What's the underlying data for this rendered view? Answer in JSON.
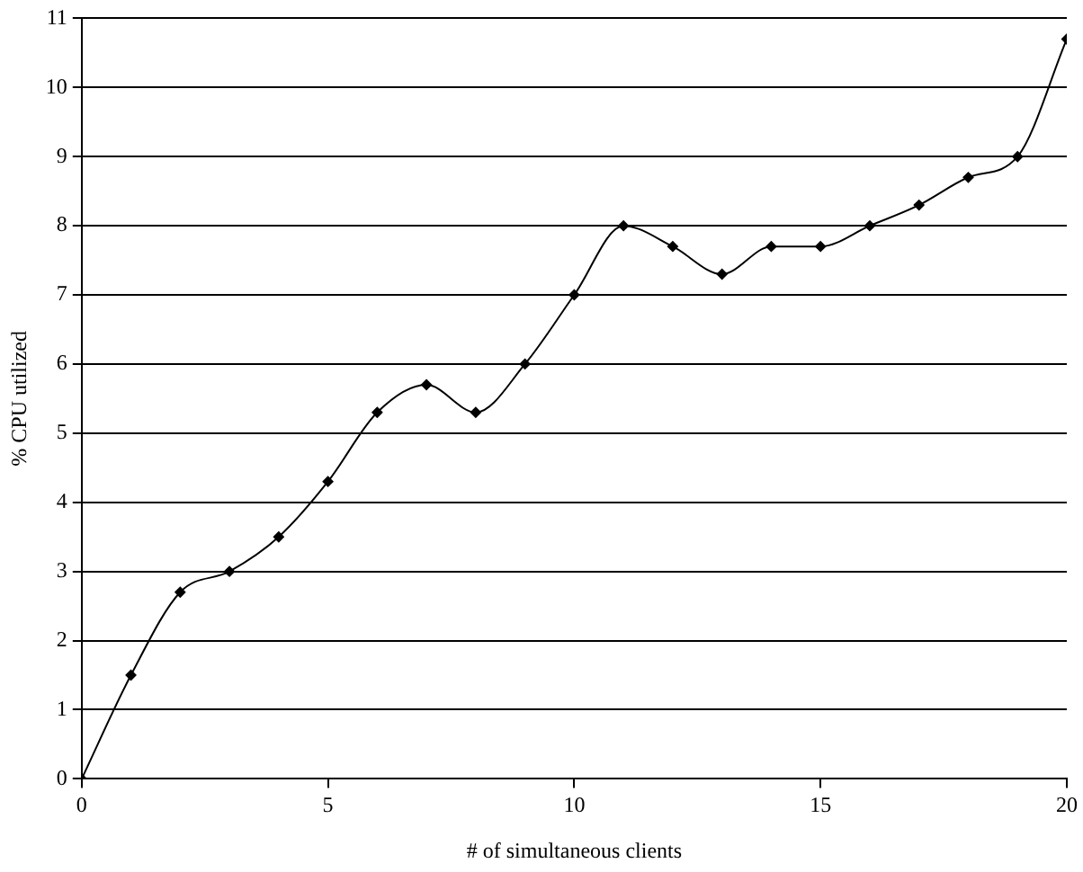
{
  "chart_data": {
    "type": "line",
    "xlabel": "# of simultaneous clients",
    "ylabel": "% CPU utilized",
    "x": [
      0,
      1,
      2,
      3,
      4,
      5,
      6,
      7,
      8,
      9,
      10,
      11,
      12,
      13,
      14,
      15,
      16,
      17,
      18,
      19,
      20
    ],
    "series": [
      {
        "color": "#000000",
        "values": [
          0,
          1.5,
          2.7,
          3.0,
          3.5,
          4.3,
          5.3,
          5.7,
          5.3,
          6.0,
          7.0,
          8.0,
          7.7,
          7.3,
          7.7,
          7.7,
          8.0,
          8.3,
          8.7,
          9.0,
          10.7
        ]
      }
    ],
    "xlim": [
      0,
      20
    ],
    "xticks": [
      0,
      5,
      10,
      15,
      20
    ],
    "ylim": [
      0,
      11
    ],
    "yticks": [
      0,
      1,
      2,
      3,
      4,
      5,
      6,
      7,
      8,
      9,
      10,
      11
    ],
    "grid": "y",
    "legend": false,
    "marker": "diamond",
    "line_style": "solid"
  }
}
